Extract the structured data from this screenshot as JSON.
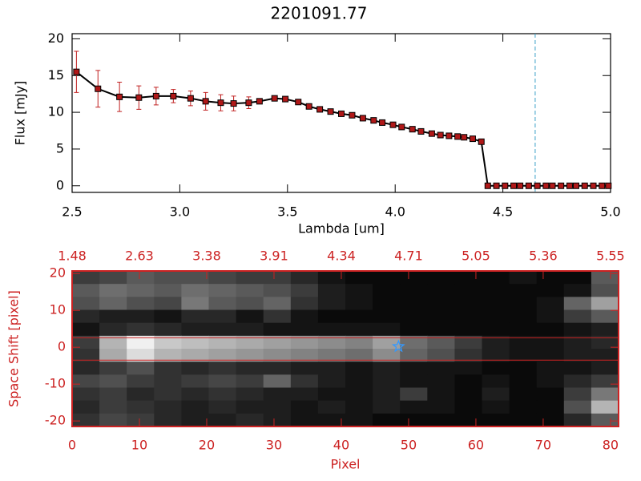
{
  "chart_data": [
    {
      "type": "line",
      "title": "2201091.77",
      "xlabel": "Lambda [um]",
      "ylabel": "Flux [mJy]",
      "x": [
        2.52,
        2.62,
        2.72,
        2.81,
        2.89,
        2.97,
        3.05,
        3.12,
        3.19,
        3.25,
        3.32,
        3.37,
        3.44,
        3.49,
        3.55,
        3.6,
        3.65,
        3.7,
        3.75,
        3.8,
        3.85,
        3.9,
        3.94,
        3.99,
        4.03,
        4.08,
        4.12,
        4.17,
        4.21,
        4.25,
        4.29,
        4.32,
        4.36,
        4.4,
        4.43,
        4.47,
        4.51,
        4.55,
        4.58,
        4.62,
        4.66,
        4.7,
        4.73,
        4.77,
        4.81,
        4.84,
        4.88,
        4.92,
        4.96,
        4.99
      ],
      "series": [
        {
          "name": "Flux",
          "color": "#000000",
          "marker_color": "#b01818",
          "error_color": "#c02020",
          "values": [
            15.5,
            13.2,
            12.1,
            12.0,
            12.2,
            12.2,
            11.9,
            11.5,
            11.3,
            11.2,
            11.3,
            11.5,
            11.9,
            11.8,
            11.4,
            10.8,
            10.4,
            10.1,
            9.8,
            9.6,
            9.2,
            8.9,
            8.6,
            8.3,
            8.0,
            7.7,
            7.4,
            7.1,
            6.9,
            6.8,
            6.7,
            6.6,
            6.4,
            6.0,
            0,
            0,
            0,
            0,
            0,
            0,
            0,
            0,
            0,
            0,
            0,
            0,
            0,
            0,
            0,
            0
          ],
          "errors": [
            2.8,
            2.5,
            2.0,
            1.6,
            1.2,
            0.9,
            1.0,
            1.2,
            1.1,
            1.0,
            0.8,
            null,
            null,
            null,
            null,
            null,
            null,
            null,
            null,
            null,
            null,
            null,
            null,
            null,
            null,
            null,
            null,
            null,
            null,
            null,
            null,
            null,
            null,
            null,
            null,
            null,
            null,
            null,
            null,
            null,
            null,
            null,
            null,
            null,
            null,
            null,
            null,
            null,
            null,
            null
          ]
        }
      ],
      "vline": {
        "x": 4.65,
        "color": "#3aa0c8"
      },
      "xlim": [
        2.5,
        5.0
      ],
      "ylim": [
        -0.9,
        20.7
      ],
      "xticks": [
        2.5,
        {
          "value": 3,
          "label": "3.0"
        },
        3.5,
        {
          "value": 4,
          "label": "4.0"
        },
        4.5,
        {
          "value": 5,
          "label": "5.0"
        }
      ],
      "yticks": [
        0,
        5,
        10,
        15,
        20
      ]
    },
    {
      "type": "heatmap",
      "xlabel": "Pixel",
      "ylabel": "Space Shift [pixel]",
      "axis_color": "#cc2222",
      "xlim": [
        0,
        81.2
      ],
      "ylim": [
        -21.5,
        20.7
      ],
      "xticks": [
        0,
        10,
        20,
        30,
        40,
        50,
        60,
        70,
        80
      ],
      "x2ticks": [
        1.48,
        2.63,
        3.38,
        3.91,
        4.34,
        4.71,
        5.05,
        5.36,
        5.55
      ],
      "yticks": [
        -20,
        -10,
        0,
        10,
        20
      ],
      "aperture": [
        2.6,
        -3.5
      ],
      "star": {
        "x": 48.5,
        "y": 0.2,
        "color": "#3399ff"
      },
      "image": [
        [
          60,
          70,
          90,
          80,
          80,
          70,
          60,
          60,
          40,
          20,
          10,
          10,
          10,
          10,
          10,
          10,
          20,
          10,
          10,
          90
        ],
        [
          90,
          110,
          100,
          90,
          110,
          100,
          90,
          80,
          60,
          30,
          20,
          10,
          10,
          10,
          10,
          10,
          10,
          10,
          20,
          80
        ],
        [
          80,
          100,
          80,
          70,
          120,
          90,
          80,
          100,
          50,
          30,
          20,
          10,
          10,
          10,
          10,
          10,
          10,
          20,
          100,
          160
        ],
        [
          40,
          30,
          30,
          20,
          40,
          40,
          20,
          50,
          20,
          10,
          10,
          10,
          10,
          10,
          10,
          10,
          10,
          20,
          60,
          90
        ],
        [
          20,
          40,
          50,
          40,
          30,
          30,
          30,
          20,
          20,
          20,
          20,
          20,
          10,
          10,
          10,
          10,
          10,
          10,
          20,
          30
        ],
        [
          60,
          180,
          240,
          200,
          190,
          180,
          170,
          160,
          150,
          140,
          130,
          160,
          110,
          90,
          60,
          30,
          20,
          20,
          30,
          40
        ],
        [
          50,
          170,
          220,
          180,
          170,
          160,
          150,
          140,
          130,
          120,
          110,
          140,
          100,
          80,
          50,
          30,
          20,
          20,
          30,
          30
        ],
        [
          40,
          60,
          80,
          50,
          40,
          50,
          40,
          40,
          30,
          30,
          20,
          30,
          20,
          20,
          20,
          10,
          10,
          20,
          20,
          30
        ],
        [
          70,
          80,
          60,
          50,
          60,
          70,
          60,
          100,
          50,
          30,
          20,
          30,
          20,
          20,
          10,
          20,
          10,
          20,
          40,
          60
        ],
        [
          50,
          60,
          40,
          50,
          40,
          50,
          40,
          30,
          30,
          20,
          20,
          30,
          60,
          20,
          10,
          30,
          10,
          10,
          60,
          120
        ],
        [
          40,
          60,
          50,
          40,
          30,
          40,
          30,
          30,
          20,
          30,
          20,
          30,
          20,
          20,
          10,
          20,
          10,
          10,
          80,
          180
        ],
        [
          50,
          70,
          60,
          40,
          30,
          30,
          40,
          30,
          20,
          20,
          20,
          10,
          10,
          10,
          10,
          10,
          10,
          10,
          40,
          90
        ]
      ]
    }
  ]
}
